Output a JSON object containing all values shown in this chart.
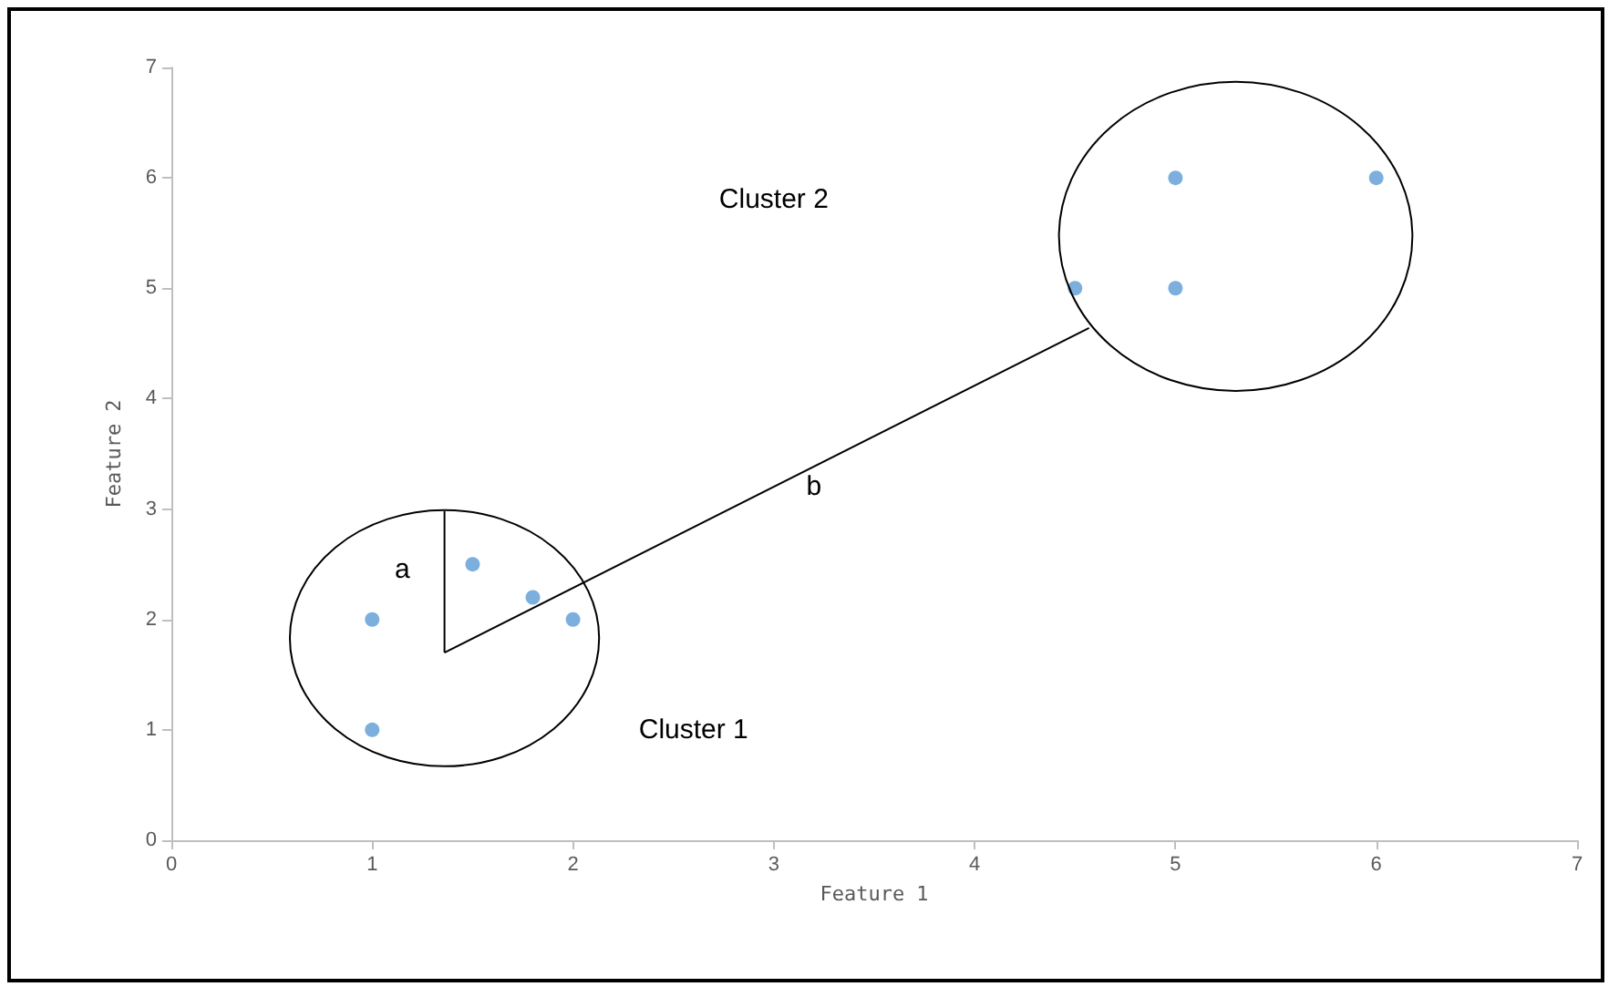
{
  "chart_data": {
    "type": "scatter",
    "xlabel": "Feature 1",
    "ylabel": "Feature 2",
    "series": [
      {
        "color": "#5b9bd5",
        "marker": "circle",
        "x": [
          1,
          1,
          1.5,
          1.8,
          2,
          4.5,
          5,
          5,
          6
        ],
        "values": [
          2,
          1,
          2.5,
          2.2,
          2,
          5,
          6,
          5,
          6
        ]
      },
      {
        "type": "line",
        "color": "#000000",
        "marker": "none",
        "x": [
          1.36,
          1.36
        ],
        "values": [
          2.98,
          1.7
        ]
      },
      {
        "type": "line",
        "color": "#000000",
        "marker": "none",
        "x": [
          1.36,
          4.57
        ],
        "values": [
          1.7,
          4.64
        ]
      }
    ],
    "grid": false,
    "xlim": [
      0,
      7
    ],
    "xticks": [
      0,
      1,
      2,
      3,
      4,
      5,
      6,
      7
    ],
    "ylim": [
      0,
      7
    ],
    "yticks": [
      0,
      1,
      2,
      3,
      4,
      5,
      6,
      7
    ],
    "annotations": [
      "Cluster 1",
      "Cluster 2",
      "a",
      "b"
    ]
  }
}
